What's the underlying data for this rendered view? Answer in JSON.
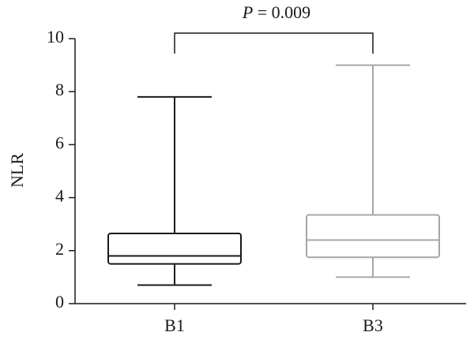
{
  "chart_data": {
    "type": "box",
    "annotation": "P = 0.009",
    "y_label": "NLR",
    "categories": [
      "B1",
      "B3"
    ],
    "colors": [
      "#1a1a1a",
      "#a6a6a6"
    ],
    "min": [
      0.7,
      1.0
    ],
    "q1": [
      1.5,
      1.75
    ],
    "median": [
      1.8,
      2.4
    ],
    "q3": [
      2.65,
      3.35
    ],
    "max": [
      7.8,
      9.0
    ],
    "ylim": [
      0,
      10
    ],
    "yticks": [
      0,
      2,
      4,
      6,
      8,
      10
    ],
    "grid": false
  }
}
